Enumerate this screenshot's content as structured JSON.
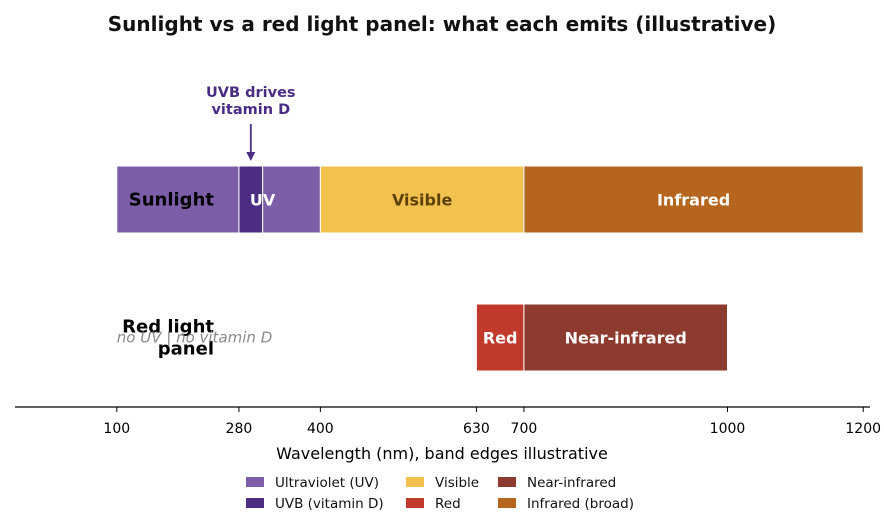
{
  "chart_data": {
    "type": "bar",
    "title": "Sunlight vs a red light panel: what each emits (illustrative)",
    "xlabel": "Wavelength (nm), band edges illustrative",
    "xlim": [
      -50,
      1210
    ],
    "xticks": [
      100,
      280,
      400,
      630,
      700,
      1000,
      1200
    ],
    "rows": [
      {
        "label": "Sunlight",
        "bands": [
          {
            "series": "uv",
            "start": 100,
            "end": 280,
            "label": ""
          },
          {
            "series": "uvb",
            "start": 280,
            "end": 315,
            "label": ""
          },
          {
            "series": "uv",
            "start": 315,
            "end": 400,
            "label": ""
          },
          {
            "series": "visible",
            "start": 400,
            "end": 700,
            "label": "Visible"
          },
          {
            "series": "ir",
            "start": 700,
            "end": 1200,
            "label": "Infrared"
          }
        ],
        "extra_labels": [
          {
            "text": "UV",
            "x": 250
          }
        ],
        "annotation": {
          "text_lines": [
            "UVB drives",
            "vitamin D"
          ],
          "x": 297.5
        }
      },
      {
        "label": "Red light panel",
        "label_lines": [
          "Red light",
          "panel"
        ],
        "note": "no UV  |  no vitamin D",
        "bands": [
          {
            "series": "red",
            "start": 630,
            "end": 700,
            "label": "Red"
          },
          {
            "series": "nir",
            "start": 700,
            "end": 1000,
            "label": "Near-infrared"
          }
        ]
      }
    ],
    "series": [
      {
        "key": "uv",
        "name": "Ultraviolet (UV)",
        "color": "#7b5ea7"
      },
      {
        "key": "uvb",
        "name": "UVB (vitamin D)",
        "color": "#4b2e83"
      },
      {
        "key": "visible",
        "name": "Visible",
        "color": "#f2c14e"
      },
      {
        "key": "red",
        "name": "Red",
        "color": "#c0392b"
      },
      {
        "key": "nir",
        "name": "Near-infrared",
        "color": "#8e3b2f"
      },
      {
        "key": "ir",
        "name": "Infrared (broad)",
        "color": "#b5651d"
      }
    ],
    "legend_placement": "bottom-center",
    "grid": false
  }
}
